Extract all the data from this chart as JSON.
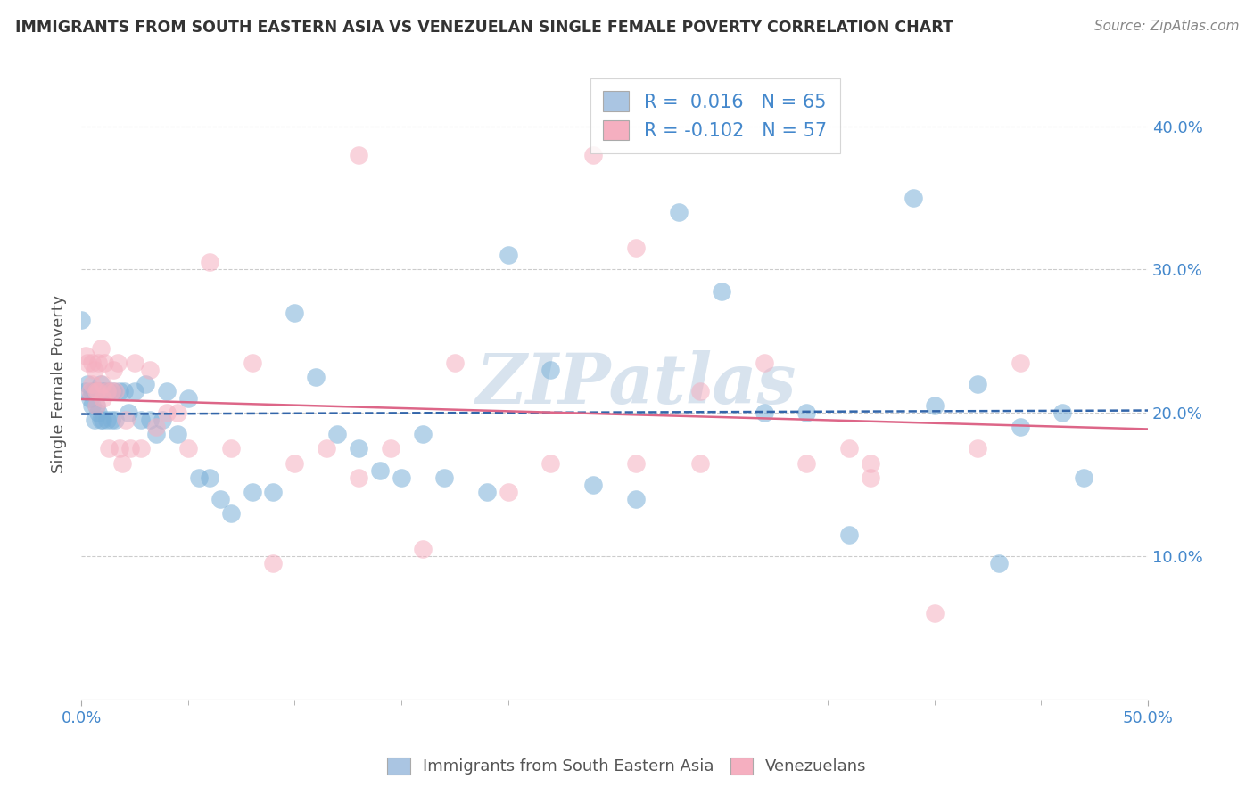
{
  "title": "IMMIGRANTS FROM SOUTH EASTERN ASIA VS VENEZUELAN SINGLE FEMALE POVERTY CORRELATION CHART",
  "source": "Source: ZipAtlas.com",
  "ylabel": "Single Female Poverty",
  "xlim": [
    0.0,
    0.5
  ],
  "ylim": [
    0.0,
    0.44
  ],
  "ytick_vals": [
    0.1,
    0.2,
    0.3,
    0.4
  ],
  "ytick_labels": [
    "10.0%",
    "20.0%",
    "30.0%",
    "40.0%"
  ],
  "xtick_vals": [
    0.0,
    0.5
  ],
  "xtick_labels": [
    "0.0%",
    "50.0%"
  ],
  "legend1_r": "R = ",
  "legend1_val": "0.016",
  "legend1_n": "  N = ",
  "legend1_nval": "65",
  "legend2_r": "R = ",
  "legend2_val": "-0.102",
  "legend2_n": "  N = ",
  "legend2_nval": "57",
  "legend1_patch_color": "#aac5e2",
  "legend2_patch_color": "#f5afc0",
  "blue_dot_color": "#7ab0d8",
  "pink_dot_color": "#f5afc0",
  "blue_line_color": "#3366aa",
  "pink_line_color": "#dd6688",
  "tick_label_color": "#4488cc",
  "watermark": "ZIPatlas",
  "watermark_color": "#c8d8e8",
  "background_color": "#ffffff",
  "grid_color": "#cccccc",
  "blue_r": 0.016,
  "pink_r": -0.102,
  "blue_n": 65,
  "pink_n": 57,
  "blue_x": [
    0.0,
    0.002,
    0.003,
    0.004,
    0.005,
    0.005,
    0.006,
    0.006,
    0.007,
    0.007,
    0.008,
    0.008,
    0.009,
    0.009,
    0.01,
    0.01,
    0.011,
    0.012,
    0.013,
    0.014,
    0.015,
    0.016,
    0.018,
    0.02,
    0.022,
    0.025,
    0.028,
    0.03,
    0.032,
    0.035,
    0.038,
    0.04,
    0.045,
    0.05,
    0.055,
    0.06,
    0.065,
    0.07,
    0.08,
    0.09,
    0.1,
    0.11,
    0.12,
    0.13,
    0.14,
    0.15,
    0.16,
    0.17,
    0.19,
    0.2,
    0.22,
    0.24,
    0.26,
    0.28,
    0.3,
    0.32,
    0.34,
    0.36,
    0.39,
    0.4,
    0.42,
    0.43,
    0.44,
    0.46,
    0.47
  ],
  "blue_y": [
    0.265,
    0.215,
    0.22,
    0.21,
    0.215,
    0.205,
    0.215,
    0.195,
    0.215,
    0.205,
    0.215,
    0.2,
    0.22,
    0.195,
    0.215,
    0.195,
    0.215,
    0.195,
    0.215,
    0.195,
    0.215,
    0.195,
    0.215,
    0.215,
    0.2,
    0.215,
    0.195,
    0.22,
    0.195,
    0.185,
    0.195,
    0.215,
    0.185,
    0.21,
    0.155,
    0.155,
    0.14,
    0.13,
    0.145,
    0.145,
    0.27,
    0.225,
    0.185,
    0.175,
    0.16,
    0.155,
    0.185,
    0.155,
    0.145,
    0.31,
    0.23,
    0.15,
    0.14,
    0.34,
    0.285,
    0.2,
    0.2,
    0.115,
    0.35,
    0.205,
    0.22,
    0.095,
    0.19,
    0.2,
    0.155
  ],
  "pink_x": [
    0.002,
    0.003,
    0.004,
    0.005,
    0.005,
    0.006,
    0.007,
    0.007,
    0.008,
    0.008,
    0.009,
    0.01,
    0.01,
    0.011,
    0.012,
    0.013,
    0.014,
    0.015,
    0.016,
    0.017,
    0.018,
    0.019,
    0.021,
    0.023,
    0.025,
    0.028,
    0.032,
    0.035,
    0.04,
    0.045,
    0.05,
    0.06,
    0.07,
    0.08,
    0.09,
    0.1,
    0.115,
    0.13,
    0.145,
    0.16,
    0.175,
    0.2,
    0.22,
    0.24,
    0.26,
    0.29,
    0.32,
    0.34,
    0.37,
    0.4,
    0.13,
    0.26,
    0.29,
    0.36,
    0.37,
    0.42,
    0.44
  ],
  "pink_y": [
    0.24,
    0.235,
    0.215,
    0.235,
    0.22,
    0.23,
    0.215,
    0.205,
    0.235,
    0.215,
    0.245,
    0.22,
    0.21,
    0.235,
    0.215,
    0.175,
    0.215,
    0.23,
    0.215,
    0.235,
    0.175,
    0.165,
    0.195,
    0.175,
    0.235,
    0.175,
    0.23,
    0.19,
    0.2,
    0.2,
    0.175,
    0.305,
    0.175,
    0.235,
    0.095,
    0.165,
    0.175,
    0.155,
    0.175,
    0.105,
    0.235,
    0.145,
    0.165,
    0.38,
    0.165,
    0.215,
    0.235,
    0.165,
    0.165,
    0.06,
    0.38,
    0.315,
    0.165,
    0.175,
    0.155,
    0.175,
    0.235
  ]
}
